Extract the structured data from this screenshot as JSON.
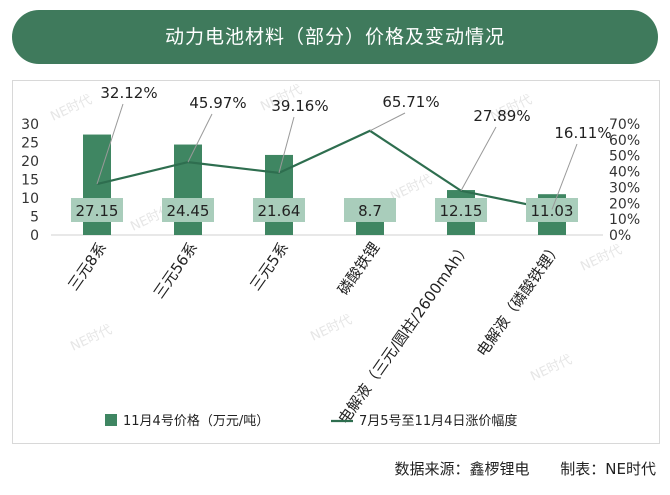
{
  "header": {
    "title": "动力电池材料（部分）价格及变动情况"
  },
  "footer": {
    "source": "数据来源：鑫椤锂电",
    "maker": "制表：NE时代"
  },
  "watermark": "NE时代",
  "chart_data": {
    "type": "bar+line",
    "categories": [
      "三元8系",
      "三元56系",
      "三元5系",
      "磷酸铁锂",
      "电解液（三元/圆柱/2600mAh）",
      "电解液（磷酸铁锂）"
    ],
    "series": [
      {
        "name": "11月4号价格（万元/吨）",
        "type": "bar",
        "axis": "left",
        "values": [
          27.15,
          24.45,
          21.64,
          8.7,
          12.15,
          11.03
        ],
        "labels": [
          "27.15",
          "24.45",
          "21.64",
          "8.7",
          "12.15",
          "11.03"
        ]
      },
      {
        "name": "7月5号至11月4日涨价幅度",
        "type": "line",
        "axis": "right",
        "values": [
          32.12,
          45.97,
          39.16,
          65.71,
          27.89,
          16.11
        ],
        "labels": [
          "32.12%",
          "45.97%",
          "39.16%",
          "65.71%",
          "27.89%",
          "16.11%"
        ]
      }
    ],
    "left_axis": {
      "min": 0,
      "max": 30,
      "ticks": [
        "0",
        "5",
        "10",
        "15",
        "20",
        "25",
        "30"
      ]
    },
    "right_axis": {
      "min": 0,
      "max": 70,
      "ticks": [
        "0%",
        "10%",
        "20%",
        "30%",
        "40%",
        "50%",
        "60%",
        "70%"
      ]
    },
    "legend_position": "bottom",
    "colors": {
      "bar": "#3f8662",
      "line": "#2e6e4f",
      "label_box": "#a9cdbb",
      "leader": "#999999"
    }
  }
}
